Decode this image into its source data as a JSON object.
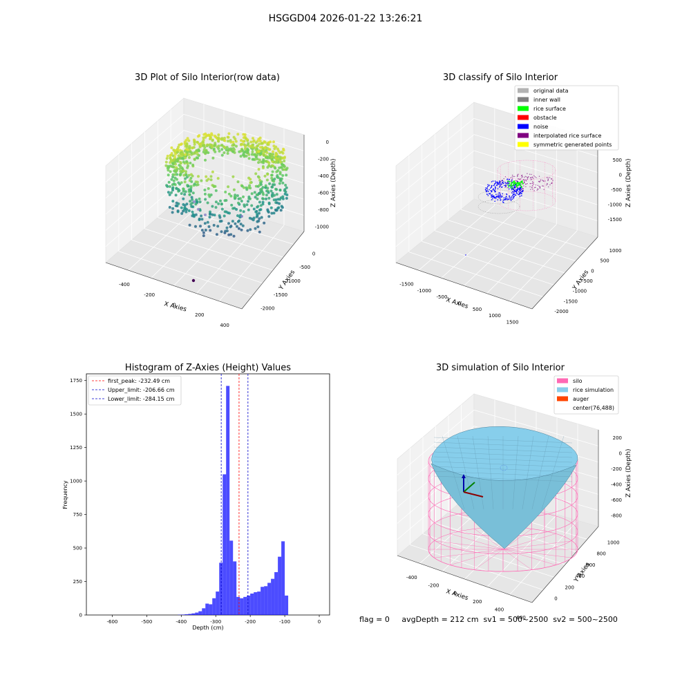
{
  "figure_title": "HSGGD04 2026-01-22 13:26:21",
  "status_line": "flag = 0     avgDepth = 212 cm  sv1 = 500~2500  sv2 = 500~2500",
  "colors": {
    "pane": "#f2f2f2",
    "grid": "#d9d9d9",
    "histogram": "#0000ff",
    "peak_line": "#ff0000",
    "limit_line": "#0000cc",
    "silo_wire": "#ff69b4",
    "rice_surface": "#87ceeb",
    "noise": "#0000ff",
    "rice_surface_pts": "#00ff00",
    "inner_wall": "#808080"
  },
  "chart_data": [
    {
      "type": "scatter",
      "projection": "3d",
      "title": "3D Plot of Silo Interior(row data)",
      "xlabel": "X Axies",
      "ylabel": "Y Axies",
      "zlabel": "Z Axies (Depth)",
      "x_ticks": [
        "-400",
        "-200",
        "0",
        "200",
        "400"
      ],
      "y_ticks": [
        "0",
        "-500",
        "-1000",
        "-1500",
        "-2000"
      ],
      "z_ticks": [
        "0",
        "-200",
        "-400",
        "-600",
        "-800",
        "-1000"
      ],
      "xlim": [
        -500,
        500
      ],
      "ylim": [
        -2100,
        100
      ],
      "zlim": [
        -1100,
        100
      ],
      "colormap": "viridis",
      "grid": true
    },
    {
      "type": "scatter",
      "projection": "3d",
      "title": "3D classify of Silo Interior",
      "xlabel": "X Axies",
      "ylabel": "Y Axies",
      "zlabel": "Z Axies (Depth)",
      "x_ticks": [
        "-1500",
        "-1000",
        "-500",
        "0",
        "500",
        "1000",
        "1500"
      ],
      "y_ticks": [
        "1000",
        "500",
        "0",
        "-500",
        "-1000",
        "-1500",
        "-2000"
      ],
      "z_ticks": [
        "500",
        "0",
        "-500",
        "-1000",
        "-1500"
      ],
      "legend_position": "top-right",
      "legend": [
        {
          "label": "original data",
          "color": "#b3b3b3"
        },
        {
          "label": "inner wall",
          "color": "#808080"
        },
        {
          "label": "rice surface",
          "color": "#00ff00"
        },
        {
          "label": "obstacle",
          "color": "#ff0000"
        },
        {
          "label": "noise",
          "color": "#0000ff"
        },
        {
          "label": "interpolated rice surface",
          "color": "#800080"
        },
        {
          "label": "symmetric generated points",
          "color": "#ffff00"
        }
      ],
      "grid": true
    },
    {
      "type": "bar",
      "title": "Histogram of Z-Axies (Height) Values",
      "xlabel": "Depth (cm)",
      "ylabel": "Frequency",
      "xlim": [
        -675,
        30
      ],
      "ylim": [
        0,
        1800
      ],
      "x_ticks": [
        -600,
        -500,
        -400,
        -300,
        -200,
        -100,
        0
      ],
      "y_ticks": [
        0,
        250,
        500,
        750,
        1000,
        1250,
        1500,
        1750
      ],
      "bin_width": 10,
      "bins_start": [
        -410,
        -400,
        -390,
        -380,
        -370,
        -360,
        -350,
        -340,
        -330,
        -320,
        -310,
        -300,
        -290,
        -280,
        -270,
        -260,
        -250,
        -240,
        -230,
        -220,
        -210,
        -200,
        -190,
        -180,
        -170,
        -160,
        -150,
        -140,
        -130,
        -120,
        -110,
        -100,
        -90,
        -80,
        -70,
        -60,
        -50,
        -40,
        -30,
        -20,
        -10
      ],
      "values": [
        2,
        3,
        5,
        8,
        12,
        18,
        28,
        50,
        85,
        80,
        125,
        175,
        390,
        1050,
        1710,
        555,
        400,
        135,
        125,
        135,
        145,
        160,
        170,
        175,
        210,
        215,
        240,
        270,
        320,
        435,
        550,
        145,
        0,
        0,
        0,
        0,
        0,
        0,
        0,
        0,
        0
      ],
      "lines": [
        {
          "label": "first_peak: -232.49 cm",
          "x": -232.49,
          "color": "#ff0000"
        },
        {
          "label": "Upper_limit: -206.66 cm",
          "x": -206.66,
          "color": "#0000cc"
        },
        {
          "label": "Lower_limit: -284.15 cm",
          "x": -284.15,
          "color": "#0000cc"
        }
      ],
      "legend_position": "top-left",
      "grid": false
    },
    {
      "type": "scatter",
      "projection": "3d",
      "title": "3D simulation of Silo Interior",
      "xlabel": "X Axies",
      "ylabel": "Y Axies",
      "zlabel": "Z Axies (Depth)",
      "x_ticks": [
        "-400",
        "-200",
        "0",
        "200",
        "400",
        "600"
      ],
      "y_ticks": [
        "1000",
        "800",
        "600",
        "400",
        "200",
        "0"
      ],
      "z_ticks": [
        "200",
        "0",
        "-200",
        "-400",
        "-600",
        "-800"
      ],
      "legend_position": "top-right",
      "legend": [
        {
          "label": "silo",
          "color": "#ff69b4"
        },
        {
          "label": "rice simulation",
          "color": "#87ceeb"
        },
        {
          "label": "auger",
          "color": "#ff4500"
        },
        {
          "label": "center(76,488)",
          "color": ""
        }
      ],
      "grid": true
    }
  ]
}
